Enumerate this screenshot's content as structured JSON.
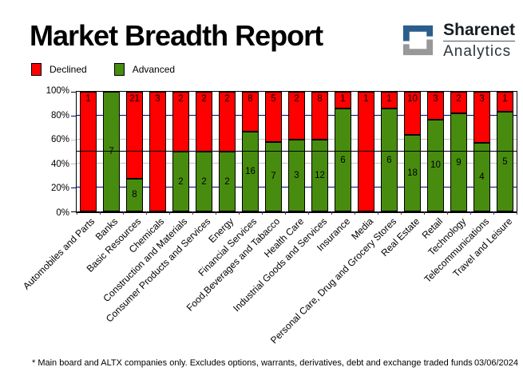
{
  "header": {
    "title": "Market Breadth Report",
    "logo": {
      "name": "Sharenet",
      "sub": "Analytics",
      "blue": "#2c5e8d",
      "gray": "#97989a"
    }
  },
  "legend": [
    {
      "label": "Declined",
      "color": "#fe0000"
    },
    {
      "label": "Advanced",
      "color": "#478c0e"
    }
  ],
  "chart_data": {
    "type": "bar",
    "stacked": true,
    "percent": true,
    "title": "Market Breadth Report",
    "categories": [
      "Automobiles and Parts",
      "Banks",
      "Basic Resources",
      "Chemicals",
      "Construction and Materials",
      "Consumer Products and Services",
      "Energy",
      "Financial Services",
      "Food,Beverages and Tabacco",
      "Health Care",
      "Industrial Goods and Services",
      "Insurance",
      "Media",
      "Personal Care, Drug and Grocery Stores",
      "Real Estate",
      "Retail",
      "Technology",
      "Telecommunications",
      "Travel and Leisure"
    ],
    "series": [
      {
        "name": "Declined",
        "color": "#fe0000",
        "values": [
          1,
          0,
          21,
          3,
          2,
          2,
          2,
          8,
          5,
          2,
          8,
          1,
          1,
          1,
          10,
          3,
          2,
          3,
          1
        ]
      },
      {
        "name": "Advanced",
        "color": "#478c0e",
        "values": [
          0,
          7,
          8,
          0,
          2,
          2,
          2,
          16,
          7,
          3,
          12,
          6,
          0,
          6,
          18,
          10,
          9,
          4,
          5
        ]
      }
    ],
    "xlabel": "",
    "ylabel": "",
    "ylim": [
      0,
      100
    ],
    "y_ticks": [
      "0%",
      "20%",
      "40%",
      "60%",
      "80%",
      "100%"
    ],
    "gridlines": [
      {
        "y": 20,
        "color": "#000080"
      },
      {
        "y": 40,
        "color": "#c0c0c0"
      },
      {
        "y": 50,
        "color": "#000000"
      },
      {
        "y": 60,
        "color": "#c0c0c0"
      },
      {
        "y": 80,
        "color": "#000080"
      }
    ],
    "legend_position": "top-left",
    "x_tick_rotation": 45
  },
  "footer": {
    "note": "* Main board and ALTX companies only. Excludes options, warrants, derivatives, debt and exchange traded funds",
    "date": "03/06/2024"
  }
}
